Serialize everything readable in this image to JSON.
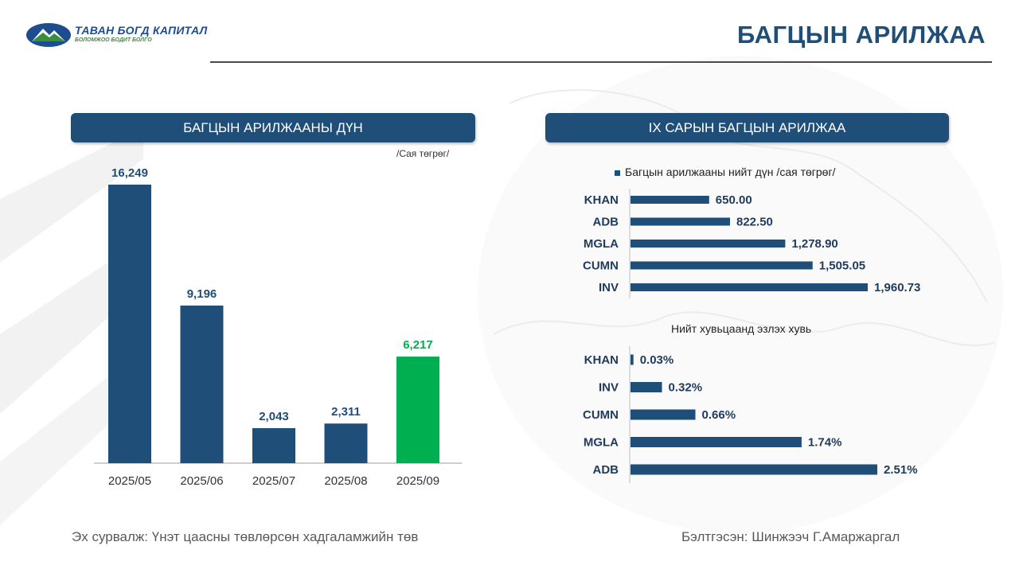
{
  "logo": {
    "name": "ТАВАН БОГД КАПИТАЛ",
    "slogan": "БОЛОМЖОО БОДИТ БОЛГО"
  },
  "page_title": "БАГЦЫН АРИЛЖАА",
  "left_panel": {
    "title": "БАГЦЫН АРИЛЖААНЫ ДҮН",
    "unit": "/Сая төгрөг/"
  },
  "right_panel": {
    "title": "IX САРЫН БАГЦЫН АРИЛЖАА",
    "chart1_legend": "Багцын арилжааны нийт дүн /сая төгрөг/",
    "chart2_title": "Нийт хувьцаанд эзлэх хувь"
  },
  "footer": {
    "source": "Эх сурвалж: Үнэт цаасны төвлөрсөн хадгаламжийн төв",
    "prepared": "Бэлтгэсэн: Шинжээч Г.Амаржаргал"
  },
  "colors": {
    "navy": "#1f4e79",
    "green": "#00b050"
  },
  "chart_data": [
    {
      "type": "bar",
      "categories": [
        "2025/05",
        "2025/06",
        "2025/07",
        "2025/08",
        "2025/09"
      ],
      "values": [
        16249,
        9196,
        2043,
        2311,
        6217
      ],
      "labels": [
        "16,249",
        "9,196",
        "2,043",
        "2,311",
        "6,217"
      ],
      "highlight_index": 4,
      "ylim": [
        0,
        16249
      ]
    },
    {
      "type": "bar",
      "orientation": "horizontal",
      "categories": [
        "KHAN",
        "ADB",
        "MGLA",
        "CUMN",
        "INV"
      ],
      "values": [
        650.0,
        822.5,
        1278.9,
        1505.05,
        1960.73
      ],
      "labels": [
        "650.00",
        "822.50",
        "1,278.90",
        "1,505.05",
        "1,960.73"
      ],
      "series": [
        {
          "name": "Багцын арилжааны нийт дүн /сая төгрөг/",
          "values": [
            650.0,
            822.5,
            1278.9,
            1505.05,
            1960.73
          ]
        }
      ],
      "legend": "top"
    },
    {
      "type": "bar",
      "orientation": "horizontal",
      "title": "Нийт хувьцаанд эзлэх хувь",
      "categories": [
        "KHAN",
        "INV",
        "CUMN",
        "MGLA",
        "ADB"
      ],
      "values": [
        0.03,
        0.32,
        0.66,
        1.74,
        2.51
      ],
      "labels": [
        "0.03%",
        "0.32%",
        "0.66%",
        "1.74%",
        "2.51%"
      ]
    }
  ]
}
